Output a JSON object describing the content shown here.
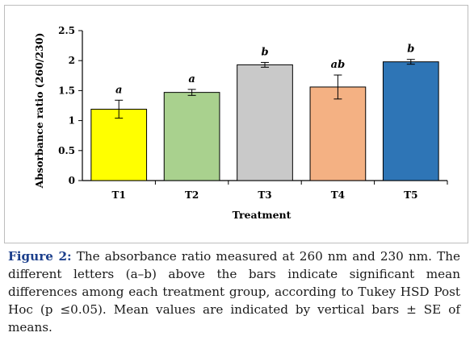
{
  "chart_data": {
    "type": "bar",
    "categories": [
      "T1",
      "T2",
      "T3",
      "T4",
      "T5"
    ],
    "values": [
      1.19,
      1.47,
      1.93,
      1.56,
      1.98
    ],
    "errors": [
      0.15,
      0.05,
      0.04,
      0.2,
      0.04
    ],
    "significance_letters": [
      "a",
      "a",
      "b",
      "ab",
      "b"
    ],
    "bar_colors": [
      "#ffff00",
      "#a9d18e",
      "#c9c9c9",
      "#f4b183",
      "#2e75b6"
    ],
    "xlabel": "Treatment",
    "ylabel": "Absorbance ratio (260/230)",
    "ylim": [
      0,
      2.5
    ],
    "yticks": [
      "0",
      "0.5",
      "1",
      "1.5",
      "2",
      "2.5"
    ],
    "grid": false
  },
  "caption": {
    "label": "Figure 2:",
    "text": " The absorbance ratio measured at 260 nm and 230 nm. The different letters (a–b) above the bars indicate significant mean differences among each treatment group, according to Tukey HSD Post Hoc (p ≤0.05). Mean values are indicated by vertical bars ± SE of means."
  }
}
